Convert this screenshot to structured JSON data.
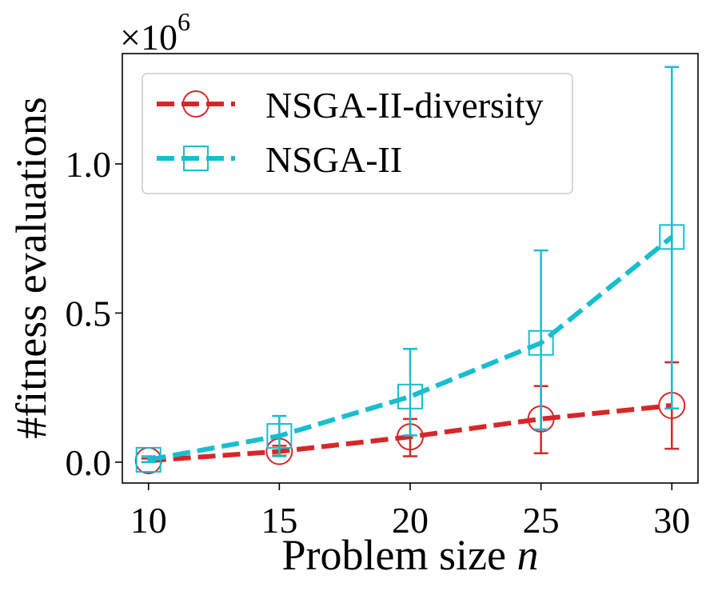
{
  "chart_data": {
    "type": "line",
    "title": "",
    "xlabel": "Problem size",
    "xlabel_var": "n",
    "ylabel": "#fitness evaluations",
    "y_multiplier": "×10",
    "y_multiplier_exp": "6",
    "x": [
      10,
      15,
      20,
      25,
      30
    ],
    "xlim": [
      9.0,
      31.0
    ],
    "ylim": [
      -0.07,
      1.37
    ],
    "x_ticks": [
      10,
      15,
      20,
      25,
      30
    ],
    "x_tick_labels": [
      "10",
      "15",
      "20",
      "25",
      "30"
    ],
    "y_ticks": [
      0.0,
      0.5,
      1.0
    ],
    "y_tick_labels": [
      "0.0",
      "0.5",
      "1.0"
    ],
    "grid": false,
    "legend_position": "top-left",
    "series": [
      {
        "name": "NSGA-II-diversity",
        "color": "#d62728",
        "marker": "circle",
        "values": [
          0.005,
          0.036,
          0.085,
          0.145,
          0.19
        ],
        "err_low": [
          0.0,
          0.022,
          0.02,
          0.03,
          0.045
        ],
        "err_high": [
          0.012,
          0.055,
          0.145,
          0.255,
          0.335
        ]
      },
      {
        "name": "NSGA-II",
        "color": "#17becf",
        "marker": "square",
        "values": [
          0.008,
          0.088,
          0.22,
          0.4,
          0.755
        ],
        "err_low": [
          0.0,
          0.02,
          0.09,
          0.11,
          0.18
        ],
        "err_high": [
          0.02,
          0.155,
          0.38,
          0.71,
          1.325
        ]
      }
    ]
  }
}
